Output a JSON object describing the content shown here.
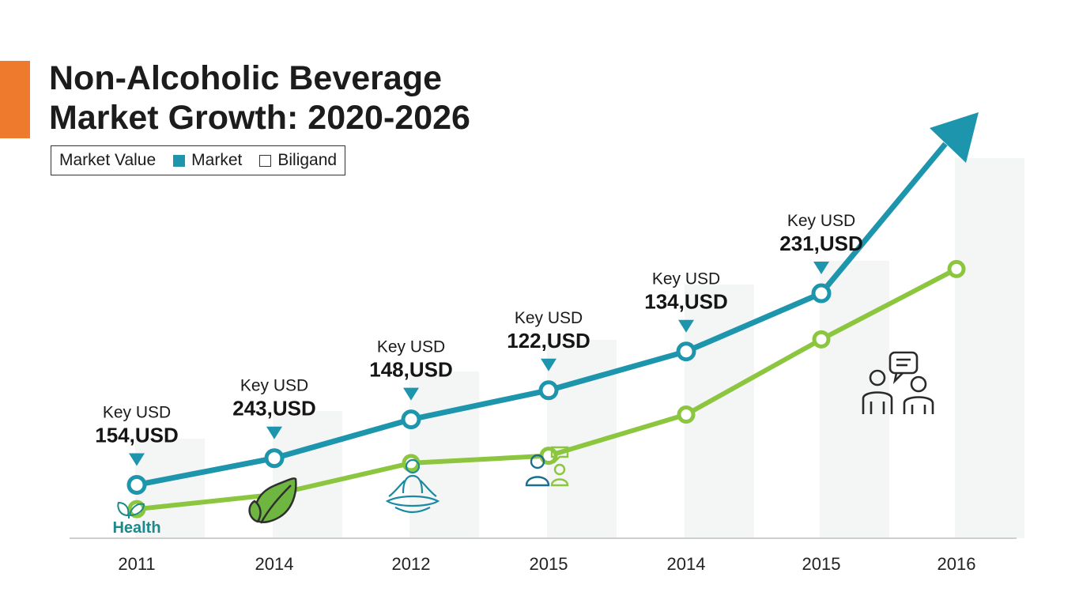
{
  "title_line1": "Non-Alcoholic Beverage",
  "title_line2": "Market Growth: 2020-2026",
  "legend": {
    "label": "Market Value",
    "item1": "Market",
    "item2": "Biligand"
  },
  "icon_labels": {
    "health": "Health"
  },
  "colors": {
    "accent": "#ee7a2e",
    "market": "#1d95ad",
    "biligand": "#8cc63f"
  },
  "chart_data": {
    "type": "line",
    "title": "Non-Alcoholic Beverage Market Growth: 2020-2026",
    "categories": [
      "2011",
      "2014",
      "2012",
      "2015",
      "2014",
      "2015",
      "2016"
    ],
    "series": [
      {
        "name": "Market",
        "color": "#1d95ad",
        "values": [
          22,
          33,
          49,
          61,
          77,
          101,
          135
        ]
      },
      {
        "name": "Biligand",
        "color": "#8cc63f",
        "values": [
          12,
          18,
          31,
          34,
          51,
          82,
          111
        ]
      }
    ],
    "annotations": [
      {
        "index": 0,
        "label": "Key USD",
        "value": "154,USD"
      },
      {
        "index": 1,
        "label": "Key USD",
        "value": "243,USD"
      },
      {
        "index": 2,
        "label": "Key USD",
        "value": "148,USD"
      },
      {
        "index": 3,
        "label": "Key USD",
        "value": "122,USD"
      },
      {
        "index": 4,
        "label": "Key USD",
        "value": "134,USD"
      },
      {
        "index": 5,
        "label": "Key USD",
        "value": "231,USD"
      }
    ],
    "ylim": [
      0,
      145
    ],
    "grid": false,
    "legend_position": "top-left"
  }
}
